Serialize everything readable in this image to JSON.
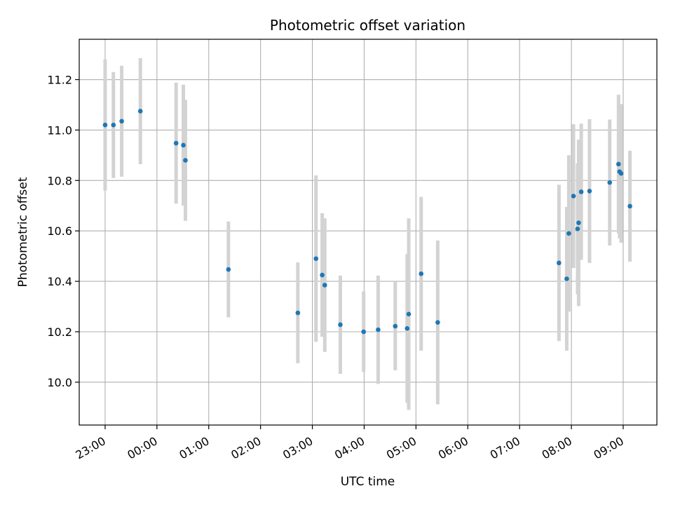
{
  "chart_data": {
    "type": "scatter",
    "title": "Photometric offset variation",
    "xlabel": "UTC time",
    "ylabel": "Photometric offset",
    "x_unit": "hours",
    "xlim": [
      -0.5,
      10.65
    ],
    "ylim": [
      9.83,
      11.36
    ],
    "x_ticks": [
      {
        "x": 0,
        "label": "23:00"
      },
      {
        "x": 1,
        "label": "00:00"
      },
      {
        "x": 2,
        "label": "01:00"
      },
      {
        "x": 3,
        "label": "02:00"
      },
      {
        "x": 4,
        "label": "03:00"
      },
      {
        "x": 5,
        "label": "04:00"
      },
      {
        "x": 6,
        "label": "05:00"
      },
      {
        "x": 7,
        "label": "06:00"
      },
      {
        "x": 8,
        "label": "07:00"
      },
      {
        "x": 9,
        "label": "08:00"
      },
      {
        "x": 10,
        "label": "09:00"
      }
    ],
    "y_ticks": [
      {
        "y": 10.0,
        "label": "10.0"
      },
      {
        "y": 10.2,
        "label": "10.2"
      },
      {
        "y": 10.4,
        "label": "10.4"
      },
      {
        "y": 10.6,
        "label": "10.6"
      },
      {
        "y": 10.8,
        "label": "10.8"
      },
      {
        "y": 11.0,
        "label": "11.0"
      },
      {
        "y": 11.2,
        "label": "11.2"
      }
    ],
    "grid": true,
    "colors": {
      "point": "#1f77b4",
      "errorbar": "#d3d3d3",
      "grid": "#b0b0b0"
    },
    "points": [
      {
        "x": 0.0,
        "y": 11.02,
        "yerr": 0.26
      },
      {
        "x": 0.16,
        "y": 11.02,
        "yerr": 0.21
      },
      {
        "x": 0.32,
        "y": 11.035,
        "yerr": 0.22
      },
      {
        "x": 0.68,
        "y": 11.075,
        "yerr": 0.21
      },
      {
        "x": 1.37,
        "y": 10.948,
        "yerr": 0.24
      },
      {
        "x": 1.51,
        "y": 10.94,
        "yerr": 0.24
      },
      {
        "x": 1.55,
        "y": 10.88,
        "yerr": 0.24
      },
      {
        "x": 2.38,
        "y": 10.447,
        "yerr": 0.19
      },
      {
        "x": 3.72,
        "y": 10.275,
        "yerr": 0.2
      },
      {
        "x": 4.07,
        "y": 10.49,
        "yerr": 0.33
      },
      {
        "x": 4.19,
        "y": 10.425,
        "yerr": 0.245
      },
      {
        "x": 4.24,
        "y": 10.385,
        "yerr": 0.265
      },
      {
        "x": 4.54,
        "y": 10.228,
        "yerr": 0.195
      },
      {
        "x": 4.99,
        "y": 10.2,
        "yerr": 0.16
      },
      {
        "x": 5.27,
        "y": 10.208,
        "yerr": 0.215
      },
      {
        "x": 5.6,
        "y": 10.222,
        "yerr": 0.175
      },
      {
        "x": 5.83,
        "y": 10.213,
        "yerr": 0.295
      },
      {
        "x": 5.86,
        "y": 10.27,
        "yerr": 0.38
      },
      {
        "x": 6.1,
        "y": 10.43,
        "yerr": 0.305
      },
      {
        "x": 6.42,
        "y": 10.237,
        "yerr": 0.325
      },
      {
        "x": 8.76,
        "y": 10.473,
        "yerr": 0.31
      },
      {
        "x": 8.91,
        "y": 10.41,
        "yerr": 0.285
      },
      {
        "x": 8.95,
        "y": 10.59,
        "yerr": 0.31
      },
      {
        "x": 9.04,
        "y": 10.738,
        "yerr": 0.285
      },
      {
        "x": 9.12,
        "y": 10.608,
        "yerr": 0.26
      },
      {
        "x": 9.14,
        "y": 10.632,
        "yerr": 0.33
      },
      {
        "x": 9.19,
        "y": 10.755,
        "yerr": 0.27
      },
      {
        "x": 9.35,
        "y": 10.758,
        "yerr": 0.285
      },
      {
        "x": 9.74,
        "y": 10.792,
        "yerr": 0.25
      },
      {
        "x": 9.91,
        "y": 10.865,
        "yerr": 0.275
      },
      {
        "x": 9.93,
        "y": 10.835,
        "yerr": 0.265
      },
      {
        "x": 9.96,
        "y": 10.828,
        "yerr": 0.275
      },
      {
        "x": 10.13,
        "y": 10.698,
        "yerr": 0.22
      }
    ]
  }
}
